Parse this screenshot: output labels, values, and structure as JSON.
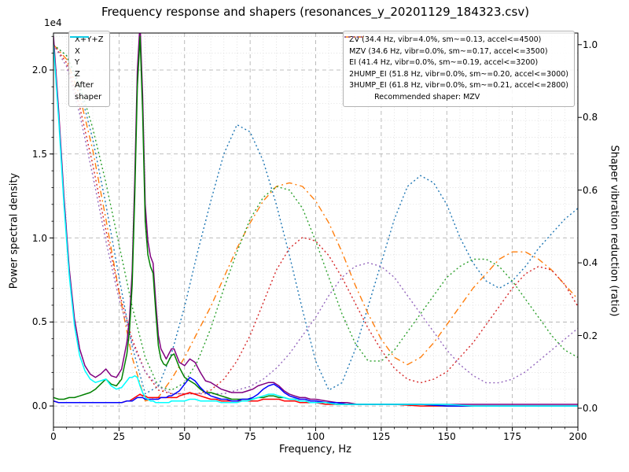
{
  "title": "Frequency response and shapers (resonances_y_20201129_184323.csv)",
  "xlabel": "Frequency, Hz",
  "ylabel_left": "Power spectral density",
  "ylabel_right": "Shaper vibration reduction (ratio)",
  "offset_label": "1e4",
  "legend_left": {
    "items": [
      {
        "label": "X+Y+Z",
        "color": "#800080",
        "style": "solid"
      },
      {
        "label": "X",
        "color": "#ff0000",
        "style": "solid"
      },
      {
        "label": "Y",
        "color": "#008000",
        "style": "solid"
      },
      {
        "label": "Z",
        "color": "#0000ff",
        "style": "solid"
      },
      {
        "label": "After\nshaper",
        "color": "#00ffff",
        "style": "solid"
      }
    ]
  },
  "legend_right": {
    "items": [
      {
        "label": "ZV (34.4 Hz, vibr=4.0%, sm~=0.13, accel<=4500)",
        "color": "#1f77b4",
        "style": "dotted"
      },
      {
        "label": "MZV (34.6 Hz, vibr=0.0%, sm~=0.17, accel<=3500)",
        "color": "#ff7f0e",
        "style": "dashdot"
      },
      {
        "label": "EI (41.4 Hz, vibr=0.0%, sm~=0.19, accel<=3200)",
        "color": "#2ca02c",
        "style": "dotted"
      },
      {
        "label": "2HUMP_EI (51.8 Hz, vibr=0.0%, sm~=0.20, accel<=3000)",
        "color": "#d62728",
        "style": "dotted"
      },
      {
        "label": "3HUMP_EI (61.8 Hz, vibr=0.0%, sm~=0.21, accel<=2800)",
        "color": "#9467bd",
        "style": "dotted"
      }
    ],
    "note": "Recommended shaper: MZV"
  },
  "chart_data": {
    "type": "line",
    "title": "Frequency response and shapers (resonances_y_20201129_184323.csv)",
    "xlabel": "Frequency, Hz",
    "ylabel": "Power spectral density",
    "ylabel2": "Shaper vibration reduction (ratio)",
    "grid": "major+minor",
    "legend_position": [
      "upper left",
      "upper right"
    ],
    "xlim": [
      0,
      200
    ],
    "x_ticks": [
      0,
      25,
      50,
      75,
      100,
      125,
      150,
      175,
      200
    ],
    "ylim_left": [
      -0.126,
      2.22
    ],
    "y_multiplier_left": 10000,
    "y_ticks_left": [
      0.0,
      0.5,
      1.0,
      1.5,
      2.0
    ],
    "ylim_right": [
      -0.052,
      1.032
    ],
    "y_ticks_right": [
      0.0,
      0.2,
      0.4,
      0.6,
      0.8,
      1.0
    ],
    "minor_x_step": 5,
    "minor_y_step": 0.1,
    "psd_x": [
      0,
      2,
      4,
      6,
      8,
      10,
      12,
      14,
      16,
      18,
      20,
      22,
      24,
      26,
      28,
      29,
      30,
      31,
      32,
      33,
      34,
      35,
      36,
      37,
      38,
      39,
      40,
      41,
      42,
      43,
      44,
      45,
      46,
      47,
      48,
      50,
      52,
      54,
      56,
      58,
      60,
      62,
      64,
      66,
      68,
      70,
      72,
      74,
      76,
      78,
      80,
      82,
      84,
      86,
      88,
      90,
      92,
      94,
      96,
      98,
      100,
      104,
      108,
      112,
      116,
      120,
      130,
      140,
      150,
      160,
      170,
      180,
      190,
      200
    ],
    "psd_series": [
      {
        "name": "X+Y+Z",
        "color": "#800080",
        "axis": "left",
        "y": [
          2.2,
          1.75,
          1.25,
          0.82,
          0.52,
          0.34,
          0.24,
          0.19,
          0.17,
          0.19,
          0.22,
          0.18,
          0.17,
          0.22,
          0.38,
          0.52,
          0.8,
          1.35,
          2.0,
          2.28,
          1.85,
          1.2,
          0.98,
          0.89,
          0.85,
          0.62,
          0.42,
          0.34,
          0.31,
          0.28,
          0.31,
          0.34,
          0.34,
          0.3,
          0.26,
          0.24,
          0.28,
          0.26,
          0.2,
          0.15,
          0.14,
          0.12,
          0.1,
          0.09,
          0.08,
          0.08,
          0.08,
          0.09,
          0.1,
          0.12,
          0.13,
          0.14,
          0.14,
          0.12,
          0.09,
          0.07,
          0.06,
          0.05,
          0.05,
          0.04,
          0.04,
          0.03,
          0.02,
          0.02,
          0.01,
          0.01,
          0.01,
          0.01,
          0.01,
          0.01,
          0.01,
          0.01,
          0.01,
          0.01
        ]
      },
      {
        "name": "X",
        "color": "#ff0000",
        "axis": "left",
        "y": [
          0.03,
          0.02,
          0.02,
          0.02,
          0.02,
          0.02,
          0.02,
          0.02,
          0.02,
          0.02,
          0.02,
          0.02,
          0.02,
          0.02,
          0.03,
          0.03,
          0.04,
          0.05,
          0.06,
          0.07,
          0.06,
          0.06,
          0.05,
          0.05,
          0.05,
          0.05,
          0.05,
          0.05,
          0.05,
          0.05,
          0.05,
          0.05,
          0.05,
          0.05,
          0.06,
          0.07,
          0.08,
          0.07,
          0.06,
          0.05,
          0.04,
          0.04,
          0.03,
          0.03,
          0.03,
          0.03,
          0.03,
          0.03,
          0.03,
          0.03,
          0.04,
          0.04,
          0.04,
          0.04,
          0.03,
          0.03,
          0.03,
          0.02,
          0.02,
          0.02,
          0.02,
          0.01,
          0.01,
          0.01,
          0.01,
          0.01,
          0.01,
          0.0,
          0.0,
          0.0,
          0.0,
          0.0,
          0.0,
          0.0
        ]
      },
      {
        "name": "Y",
        "color": "#008000",
        "axis": "left",
        "y": [
          0.05,
          0.04,
          0.04,
          0.05,
          0.05,
          0.06,
          0.07,
          0.08,
          0.1,
          0.13,
          0.16,
          0.13,
          0.12,
          0.16,
          0.31,
          0.45,
          0.72,
          1.25,
          1.9,
          2.2,
          1.75,
          1.1,
          0.9,
          0.83,
          0.79,
          0.56,
          0.36,
          0.28,
          0.25,
          0.24,
          0.27,
          0.3,
          0.31,
          0.27,
          0.23,
          0.17,
          0.15,
          0.13,
          0.1,
          0.08,
          0.08,
          0.07,
          0.06,
          0.05,
          0.04,
          0.04,
          0.04,
          0.04,
          0.04,
          0.05,
          0.05,
          0.06,
          0.06,
          0.05,
          0.05,
          0.04,
          0.04,
          0.03,
          0.03,
          0.02,
          0.02,
          0.02,
          0.01,
          0.01,
          0.01,
          0.01,
          0.01,
          0.01,
          0.0,
          0.0,
          0.0,
          0.0,
          0.0,
          0.0
        ]
      },
      {
        "name": "Z",
        "color": "#0000ff",
        "axis": "left",
        "y": [
          0.03,
          0.02,
          0.02,
          0.02,
          0.02,
          0.02,
          0.02,
          0.02,
          0.02,
          0.02,
          0.02,
          0.02,
          0.02,
          0.02,
          0.03,
          0.03,
          0.03,
          0.04,
          0.05,
          0.05,
          0.05,
          0.04,
          0.04,
          0.04,
          0.04,
          0.04,
          0.04,
          0.05,
          0.05,
          0.05,
          0.06,
          0.06,
          0.07,
          0.08,
          0.09,
          0.13,
          0.17,
          0.15,
          0.11,
          0.08,
          0.06,
          0.05,
          0.04,
          0.04,
          0.03,
          0.03,
          0.04,
          0.04,
          0.05,
          0.07,
          0.1,
          0.12,
          0.13,
          0.11,
          0.08,
          0.06,
          0.05,
          0.04,
          0.04,
          0.03,
          0.03,
          0.02,
          0.02,
          0.01,
          0.01,
          0.01,
          0.01,
          0.01,
          0.0,
          0.0,
          0.0,
          0.0,
          0.0,
          0.0
        ]
      },
      {
        "name": "After shaper",
        "color": "#00ffff",
        "axis": "left",
        "y": [
          2.15,
          1.7,
          1.2,
          0.78,
          0.48,
          0.3,
          0.21,
          0.16,
          0.14,
          0.15,
          0.16,
          0.12,
          0.1,
          0.11,
          0.15,
          0.17,
          0.17,
          0.18,
          0.17,
          0.12,
          0.08,
          0.05,
          0.04,
          0.03,
          0.03,
          0.02,
          0.02,
          0.02,
          0.02,
          0.02,
          0.02,
          0.03,
          0.03,
          0.03,
          0.03,
          0.03,
          0.04,
          0.04,
          0.03,
          0.03,
          0.03,
          0.03,
          0.02,
          0.02,
          0.02,
          0.02,
          0.03,
          0.03,
          0.04,
          0.05,
          0.06,
          0.07,
          0.07,
          0.06,
          0.05,
          0.04,
          0.04,
          0.03,
          0.03,
          0.02,
          0.02,
          0.02,
          0.01,
          0.01,
          0.01,
          0.01,
          0.01,
          0.01,
          0.01,
          0.0,
          0.0,
          0.0,
          0.0,
          0.0
        ]
      }
    ],
    "shaper_x": [
      0,
      5,
      10,
      15,
      20,
      25,
      30,
      35,
      40,
      45,
      50,
      55,
      60,
      65,
      70,
      75,
      80,
      85,
      90,
      95,
      100,
      105,
      110,
      115,
      120,
      125,
      130,
      135,
      140,
      145,
      150,
      155,
      160,
      165,
      170,
      175,
      180,
      185,
      190,
      195,
      200
    ],
    "shaper_series": [
      {
        "name": "ZV",
        "color": "#1f77b4",
        "style": "dotted",
        "axis": "right",
        "y": [
          1.0,
          0.97,
          0.88,
          0.74,
          0.56,
          0.36,
          0.17,
          0.04,
          0.06,
          0.15,
          0.28,
          0.43,
          0.57,
          0.7,
          0.78,
          0.76,
          0.68,
          0.56,
          0.42,
          0.27,
          0.13,
          0.05,
          0.07,
          0.16,
          0.28,
          0.4,
          0.52,
          0.61,
          0.64,
          0.62,
          0.56,
          0.47,
          0.4,
          0.35,
          0.33,
          0.35,
          0.39,
          0.44,
          0.48,
          0.52,
          0.55
        ]
      },
      {
        "name": "MZV",
        "color": "#ff7f0e",
        "style": "dashdot",
        "axis": "right",
        "y": [
          1.0,
          0.96,
          0.86,
          0.71,
          0.52,
          0.32,
          0.14,
          0.02,
          0.03,
          0.08,
          0.14,
          0.21,
          0.28,
          0.36,
          0.44,
          0.51,
          0.57,
          0.61,
          0.62,
          0.61,
          0.57,
          0.51,
          0.43,
          0.34,
          0.26,
          0.19,
          0.14,
          0.12,
          0.14,
          0.18,
          0.23,
          0.28,
          0.33,
          0.37,
          0.41,
          0.43,
          0.43,
          0.41,
          0.38,
          0.34,
          0.3
        ]
      },
      {
        "name": "EI",
        "color": "#2ca02c",
        "style": "dotted",
        "axis": "right",
        "y": [
          1.0,
          0.97,
          0.89,
          0.77,
          0.62,
          0.45,
          0.28,
          0.14,
          0.06,
          0.05,
          0.07,
          0.13,
          0.22,
          0.33,
          0.43,
          0.52,
          0.58,
          0.61,
          0.6,
          0.55,
          0.46,
          0.36,
          0.26,
          0.18,
          0.13,
          0.13,
          0.16,
          0.21,
          0.26,
          0.31,
          0.36,
          0.39,
          0.41,
          0.41,
          0.39,
          0.35,
          0.3,
          0.25,
          0.2,
          0.16,
          0.14
        ]
      },
      {
        "name": "2HUMP_EI",
        "color": "#d62728",
        "style": "dotted",
        "axis": "right",
        "y": [
          1.0,
          0.95,
          0.83,
          0.67,
          0.49,
          0.32,
          0.19,
          0.1,
          0.05,
          0.04,
          0.04,
          0.04,
          0.05,
          0.08,
          0.13,
          0.2,
          0.29,
          0.38,
          0.44,
          0.47,
          0.46,
          0.42,
          0.36,
          0.29,
          0.22,
          0.16,
          0.11,
          0.08,
          0.07,
          0.08,
          0.1,
          0.14,
          0.18,
          0.23,
          0.28,
          0.33,
          0.37,
          0.39,
          0.38,
          0.34,
          0.28
        ]
      },
      {
        "name": "3HUMP_EI",
        "color": "#9467bd",
        "style": "dotted",
        "axis": "right",
        "y": [
          1.0,
          0.94,
          0.81,
          0.64,
          0.46,
          0.3,
          0.18,
          0.1,
          0.06,
          0.04,
          0.04,
          0.04,
          0.04,
          0.04,
          0.05,
          0.06,
          0.08,
          0.11,
          0.15,
          0.2,
          0.25,
          0.31,
          0.36,
          0.39,
          0.4,
          0.39,
          0.36,
          0.31,
          0.26,
          0.21,
          0.16,
          0.12,
          0.09,
          0.07,
          0.07,
          0.08,
          0.1,
          0.13,
          0.16,
          0.19,
          0.22
        ]
      }
    ],
    "recommended_shaper": "MZV"
  }
}
